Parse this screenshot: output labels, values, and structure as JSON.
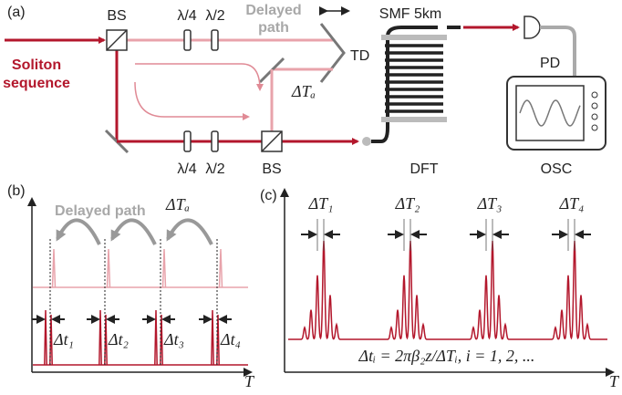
{
  "panel_a": {
    "label": "(a)",
    "bs_top": "BS",
    "qwp_top": "λ/4",
    "hwp_top": "λ/2",
    "delayed_path": [
      "Delayed",
      "path"
    ],
    "td": "TD",
    "soliton_sequence": [
      "Soliton",
      "sequence"
    ],
    "delta_ta": "ΔTₐ",
    "qwp_bottom": "λ/4",
    "hwp_bottom": "λ/2",
    "bs_bottom": "BS",
    "smf": "SMF 5km",
    "dft": "DFT",
    "pd": "PD",
    "osc": "OSC"
  },
  "panel_b": {
    "label": "(b)",
    "delayed_path": "Delayed path",
    "delta_ta": "ΔTₐ",
    "intervals": [
      "Δt₁",
      "Δt₂",
      "Δt₃",
      "Δt₄"
    ],
    "axis_label": "T"
  },
  "panel_c": {
    "label": "(c)",
    "intervals": [
      "ΔT₁",
      "ΔT₂",
      "ΔT₃",
      "ΔT₄"
    ],
    "formula": "Δtᵢ = 2πβ₂z/ΔTᵢ,  i = 1, 2, ...",
    "axis_label": "T"
  }
}
